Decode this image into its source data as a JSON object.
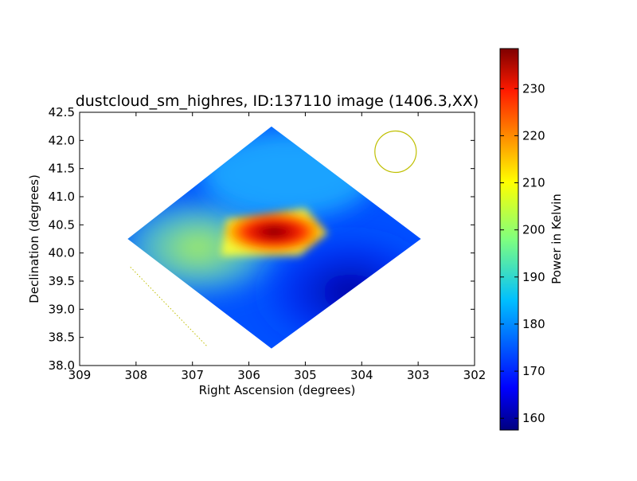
{
  "chart_data": {
    "type": "heatmap",
    "title": "dustcloud_sm_highres, ID:137110 image (1406.3,XX)",
    "xlabel": "Right Ascension (degrees)",
    "ylabel": "Declination (degrees)",
    "xlim": [
      309,
      302
    ],
    "ylim": [
      38.0,
      42.5
    ],
    "x_ticks": [
      "309",
      "308",
      "307",
      "306",
      "305",
      "304",
      "303",
      "302"
    ],
    "y_ticks": [
      "38.0",
      "38.5",
      "39.0",
      "39.5",
      "40.0",
      "40.5",
      "41.0",
      "41.5",
      "42.0",
      "42.5"
    ],
    "colorbar": {
      "label": "Power in Kelvin",
      "range": [
        157.5,
        238.5
      ],
      "ticks": [
        "160",
        "170",
        "180",
        "190",
        "200",
        "210",
        "220",
        "230"
      ],
      "colormap": "jet"
    },
    "map": {
      "footprint": [
        [
          305.6,
          42.25
        ],
        [
          308.15,
          40.25
        ],
        [
          305.6,
          38.3
        ],
        [
          302.95,
          40.25
        ]
      ],
      "peak": {
        "ra": 305.6,
        "dec": 40.3,
        "value": 237
      },
      "features": [
        {
          "kind": "hot-core",
          "ra": 305.6,
          "dec": 40.35,
          "value": 232
        },
        {
          "kind": "warm-ridge",
          "ra": 306.9,
          "dec": 40.1,
          "value": 200
        },
        {
          "kind": "cool-lobe",
          "ra": 304.2,
          "dec": 39.3,
          "value": 164
        }
      ]
    },
    "beam": {
      "ra": 303.4,
      "dec": 41.8,
      "color": "#bfbf00"
    },
    "scan_line": {
      "from": [
        308.1,
        39.75
      ],
      "to": [
        306.75,
        38.35
      ],
      "color": "#bfbf00"
    }
  }
}
